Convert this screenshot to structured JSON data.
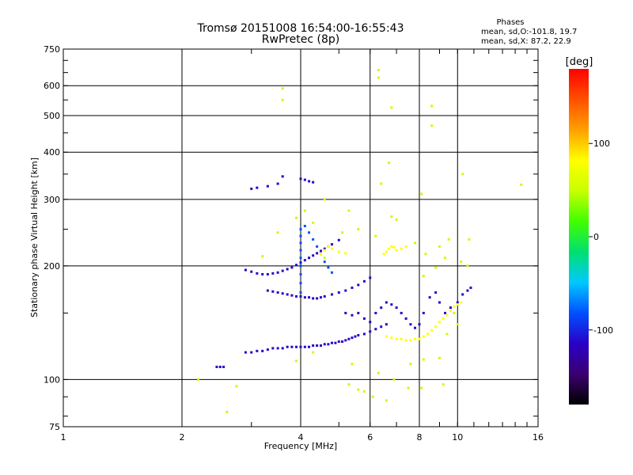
{
  "title": {
    "line1": "Tromsø 20151008 16:54:00-16:55:43",
    "line2": "RwPretec (8p)"
  },
  "phase_info": {
    "heading": "Phases",
    "line_o": "mean, sd,O:-101.8, 19.7",
    "line_x": "mean, sd,X:  87.2, 22.9"
  },
  "colorbar": {
    "title": "[deg]",
    "ticks": [
      {
        "label": "100",
        "value": 100
      },
      {
        "label": "0",
        "value": 0
      },
      {
        "label": "-100",
        "value": -100
      }
    ],
    "range": [
      -180,
      180
    ],
    "colors": [
      "#000000",
      "#3a0070",
      "#2a00c8",
      "#0050ff",
      "#00c8ff",
      "#00e070",
      "#40ff00",
      "#c8ff00",
      "#ffff00",
      "#ffa000",
      "#ff5000",
      "#ff0000"
    ]
  },
  "chart_data": {
    "type": "scatter",
    "title": "Tromsø 20151008 16:54:00-16:55:43",
    "subtitle": "RwPretec (8p)",
    "xlabel": "Frequency [MHz]",
    "ylabel": "Stationary phase Virtual Height [km]",
    "xscale": "log",
    "yscale": "log",
    "xlim": [
      1,
      16
    ],
    "ylim": [
      75,
      750
    ],
    "grid": true,
    "x_ticks": [
      {
        "label": "1",
        "value": 1
      },
      {
        "label": "2",
        "value": 2
      },
      {
        "label": "4",
        "value": 4
      },
      {
        "label": "6",
        "value": 6
      },
      {
        "label": "8",
        "value": 8
      },
      {
        "label": "10",
        "value": 10
      },
      {
        "label": "16",
        "value": 16
      }
    ],
    "y_ticks": [
      {
        "label": "75",
        "value": 75
      },
      {
        "label": "100",
        "value": 100
      },
      {
        "label": "200",
        "value": 200
      },
      {
        "label": "300",
        "value": 300
      },
      {
        "label": "400",
        "value": 400
      },
      {
        "label": "500",
        "value": 500
      },
      {
        "label": "600",
        "value": 600
      },
      {
        "label": "750",
        "value": 750
      }
    ],
    "color_scale": "phase [deg]",
    "series": [
      {
        "trace": "o_trace_lower",
        "phase": -110,
        "points": [
          [
            2.45,
            108
          ],
          [
            2.5,
            108
          ],
          [
            2.55,
            108
          ],
          [
            2.9,
            118
          ],
          [
            3.0,
            118
          ],
          [
            3.1,
            119
          ],
          [
            3.2,
            119
          ],
          [
            3.3,
            120
          ],
          [
            3.4,
            121
          ],
          [
            3.5,
            121
          ],
          [
            3.6,
            121
          ],
          [
            3.7,
            122
          ],
          [
            3.8,
            122
          ],
          [
            3.9,
            122
          ],
          [
            4.0,
            122
          ],
          [
            4.1,
            122
          ],
          [
            4.2,
            122
          ],
          [
            4.3,
            123
          ],
          [
            4.4,
            123
          ],
          [
            4.5,
            123
          ],
          [
            4.6,
            124
          ],
          [
            4.7,
            124
          ],
          [
            4.8,
            125
          ],
          [
            4.9,
            125
          ],
          [
            5.0,
            126
          ],
          [
            5.1,
            126
          ],
          [
            5.2,
            127
          ],
          [
            5.3,
            128
          ],
          [
            5.4,
            129
          ],
          [
            5.5,
            130
          ],
          [
            5.6,
            131
          ],
          [
            5.8,
            132
          ],
          [
            6.0,
            134
          ],
          [
            6.2,
            136
          ],
          [
            6.4,
            138
          ],
          [
            6.6,
            140
          ]
        ]
      },
      {
        "trace": "o_trace_middle",
        "phase": -120,
        "points": [
          [
            3.3,
            172
          ],
          [
            3.4,
            171
          ],
          [
            3.5,
            170
          ],
          [
            3.6,
            169
          ],
          [
            3.7,
            168
          ],
          [
            3.8,
            167
          ],
          [
            3.9,
            166
          ],
          [
            4.0,
            166
          ],
          [
            4.1,
            165
          ],
          [
            4.2,
            165
          ],
          [
            4.3,
            164
          ],
          [
            4.4,
            164
          ],
          [
            4.5,
            165
          ],
          [
            4.6,
            166
          ],
          [
            4.8,
            168
          ],
          [
            5.0,
            170
          ],
          [
            5.2,
            172
          ],
          [
            5.4,
            175
          ],
          [
            5.6,
            178
          ],
          [
            5.8,
            182
          ],
          [
            6.0,
            186
          ]
        ]
      },
      {
        "trace": "o_trace_upper",
        "phase": -105,
        "points": [
          [
            2.9,
            195
          ],
          [
            3.0,
            193
          ],
          [
            3.1,
            191
          ],
          [
            3.2,
            190
          ],
          [
            3.3,
            190
          ],
          [
            3.4,
            191
          ],
          [
            3.5,
            192
          ],
          [
            3.6,
            194
          ],
          [
            3.7,
            196
          ],
          [
            3.8,
            198
          ],
          [
            3.9,
            201
          ],
          [
            4.0,
            204
          ],
          [
            4.1,
            207
          ],
          [
            4.2,
            210
          ],
          [
            4.3,
            213
          ],
          [
            4.4,
            216
          ],
          [
            4.5,
            219
          ],
          [
            4.6,
            222
          ],
          [
            4.7,
            225
          ],
          [
            4.8,
            228
          ],
          [
            5.0,
            234
          ]
        ]
      },
      {
        "trace": "o_trace_f2_cusp",
        "phase": -95,
        "points": [
          [
            4.0,
            170
          ],
          [
            4.0,
            180
          ],
          [
            4.0,
            190
          ],
          [
            4.0,
            200
          ],
          [
            4.0,
            210
          ],
          [
            4.0,
            220
          ],
          [
            4.0,
            230
          ],
          [
            4.0,
            240
          ],
          [
            4.0,
            250
          ],
          [
            4.1,
            255
          ],
          [
            4.2,
            245
          ],
          [
            4.3,
            235
          ],
          [
            4.4,
            225
          ],
          [
            4.5,
            215
          ],
          [
            4.6,
            205
          ],
          [
            4.7,
            198
          ],
          [
            4.8,
            192
          ]
        ]
      },
      {
        "trace": "o_trace_spread_f",
        "phase": -100,
        "points": [
          [
            5.2,
            150
          ],
          [
            5.4,
            148
          ],
          [
            5.6,
            150
          ],
          [
            5.8,
            145
          ],
          [
            6.0,
            142
          ],
          [
            6.2,
            150
          ],
          [
            6.4,
            155
          ],
          [
            6.6,
            160
          ],
          [
            6.8,
            158
          ],
          [
            7.0,
            155
          ],
          [
            7.2,
            150
          ],
          [
            7.4,
            145
          ],
          [
            7.6,
            140
          ],
          [
            7.8,
            137
          ],
          [
            8.0,
            140
          ],
          [
            8.2,
            150
          ],
          [
            8.5,
            165
          ],
          [
            8.8,
            170
          ],
          [
            9.0,
            160
          ],
          [
            9.3,
            150
          ],
          [
            9.6,
            155
          ],
          [
            10.0,
            160
          ],
          [
            10.3,
            168
          ],
          [
            10.6,
            172
          ],
          [
            10.8,
            175
          ]
        ]
      },
      {
        "trace": "o_trace_high",
        "phase": -115,
        "points": [
          [
            3.0,
            320
          ],
          [
            3.1,
            322
          ],
          [
            3.3,
            325
          ],
          [
            3.5,
            330
          ],
          [
            3.6,
            345
          ],
          [
            4.0,
            340
          ],
          [
            4.1,
            338
          ],
          [
            4.2,
            335
          ],
          [
            4.3,
            333
          ]
        ]
      },
      {
        "trace": "x_trace_upper",
        "phase": 70,
        "points": [
          [
            4.5,
            215
          ],
          [
            4.6,
            220
          ],
          [
            4.7,
            225
          ],
          [
            4.8,
            222
          ],
          [
            5.0,
            218
          ],
          [
            5.2,
            216
          ],
          [
            6.5,
            215
          ],
          [
            6.6,
            218
          ],
          [
            6.7,
            222
          ],
          [
            6.8,
            225
          ],
          [
            6.9,
            224
          ],
          [
            7.0,
            220
          ],
          [
            7.2,
            222
          ],
          [
            7.4,
            225
          ]
        ]
      },
      {
        "trace": "x_trace_lower",
        "phase": 95,
        "points": [
          [
            6.6,
            130
          ],
          [
            6.8,
            129
          ],
          [
            7.0,
            128
          ],
          [
            7.2,
            128
          ],
          [
            7.4,
            127
          ],
          [
            7.6,
            127
          ],
          [
            7.8,
            128
          ],
          [
            8.0,
            128
          ],
          [
            8.2,
            130
          ],
          [
            8.4,
            132
          ],
          [
            8.6,
            135
          ],
          [
            8.8,
            138
          ],
          [
            9.0,
            142
          ],
          [
            9.2,
            145
          ],
          [
            9.4,
            148
          ],
          [
            9.6,
            152
          ],
          [
            9.8,
            156
          ],
          [
            10.0,
            158
          ],
          [
            10.2,
            160
          ]
        ]
      },
      {
        "trace": "scattered_echoes",
        "phase": 40,
        "points": [
          [
            3.6,
            590
          ],
          [
            3.6,
            550
          ],
          [
            6.3,
            660
          ],
          [
            6.3,
            630
          ],
          [
            6.8,
            525
          ],
          [
            8.6,
            530
          ],
          [
            8.6,
            470
          ],
          [
            6.7,
            375
          ],
          [
            8.1,
            310
          ],
          [
            6.4,
            330
          ],
          [
            10.3,
            350
          ],
          [
            14.5,
            328
          ],
          [
            2.2,
            100
          ],
          [
            2.6,
            82
          ],
          [
            2.75,
            96
          ],
          [
            5.3,
            97
          ],
          [
            5.6,
            94
          ],
          [
            5.8,
            93
          ],
          [
            6.1,
            90
          ],
          [
            6.6,
            88
          ],
          [
            7.5,
            95
          ],
          [
            8.1,
            95
          ],
          [
            9.2,
            97
          ],
          [
            4.6,
            210
          ],
          [
            5.3,
            280
          ],
          [
            5.6,
            250
          ],
          [
            6.2,
            240
          ],
          [
            6.8,
            270
          ],
          [
            7.0,
            265
          ],
          [
            7.8,
            230
          ],
          [
            8.3,
            215
          ],
          [
            9.0,
            225
          ],
          [
            9.3,
            210
          ],
          [
            9.5,
            235
          ],
          [
            10.2,
            205
          ],
          [
            10.6,
            200
          ],
          [
            10.7,
            235
          ],
          [
            9.8,
            150
          ],
          [
            9.4,
            132
          ],
          [
            10.0,
            140
          ],
          [
            4.6,
            300
          ],
          [
            4.3,
            260
          ],
          [
            3.2,
            212
          ],
          [
            3.5,
            245
          ],
          [
            3.9,
            268
          ],
          [
            4.1,
            280
          ],
          [
            5.1,
            245
          ],
          [
            8.8,
            198
          ],
          [
            8.2,
            188
          ],
          [
            7.6,
            110
          ],
          [
            8.2,
            113
          ],
          [
            9.0,
            114
          ],
          [
            6.9,
            100
          ],
          [
            6.3,
            104
          ],
          [
            5.4,
            110
          ],
          [
            4.3,
            118
          ],
          [
            3.9,
            112
          ]
        ]
      }
    ]
  }
}
